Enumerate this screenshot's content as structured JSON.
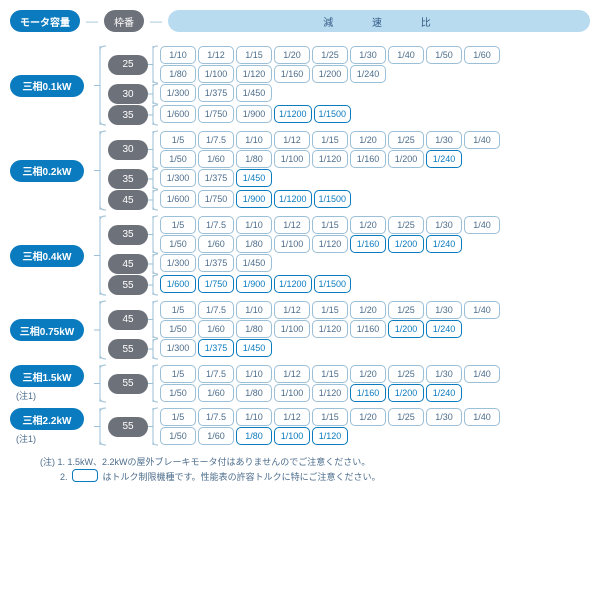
{
  "header": {
    "motor_capacity": "モータ容量",
    "frame_no": "枠番",
    "reduction_ratio": "減 速 比"
  },
  "groups": [
    {
      "motor": "三相0.1kW",
      "note": "",
      "frames": [
        {
          "no": "25",
          "rows": [
            [
              {
                "v": "1/10",
                "h": 0
              },
              {
                "v": "1/12",
                "h": 0
              },
              {
                "v": "1/15",
                "h": 0
              },
              {
                "v": "1/20",
                "h": 0
              },
              {
                "v": "1/25",
                "h": 0
              },
              {
                "v": "1/30",
                "h": 0
              },
              {
                "v": "1/40",
                "h": 0
              },
              {
                "v": "1/50",
                "h": 0
              },
              {
                "v": "1/60",
                "h": 0
              }
            ],
            [
              {
                "v": "1/80",
                "h": 0
              },
              {
                "v": "1/100",
                "h": 0
              },
              {
                "v": "1/120",
                "h": 0
              },
              {
                "v": "1/160",
                "h": 0
              },
              {
                "v": "1/200",
                "h": 0
              },
              {
                "v": "1/240",
                "h": 0
              }
            ]
          ]
        },
        {
          "no": "30",
          "rows": [
            [
              {
                "v": "1/300",
                "h": 0
              },
              {
                "v": "1/375",
                "h": 0
              },
              {
                "v": "1/450",
                "h": 0
              }
            ]
          ]
        },
        {
          "no": "35",
          "rows": [
            [
              {
                "v": "1/600",
                "h": 0
              },
              {
                "v": "1/750",
                "h": 0
              },
              {
                "v": "1/900",
                "h": 0
              },
              {
                "v": "1/1200",
                "h": 1
              },
              {
                "v": "1/1500",
                "h": 1
              }
            ]
          ]
        }
      ]
    },
    {
      "motor": "三相0.2kW",
      "note": "",
      "frames": [
        {
          "no": "30",
          "rows": [
            [
              {
                "v": "1/5",
                "h": 0
              },
              {
                "v": "1/7.5",
                "h": 0
              },
              {
                "v": "1/10",
                "h": 0
              },
              {
                "v": "1/12",
                "h": 0
              },
              {
                "v": "1/15",
                "h": 0
              },
              {
                "v": "1/20",
                "h": 0
              },
              {
                "v": "1/25",
                "h": 0
              },
              {
                "v": "1/30",
                "h": 0
              },
              {
                "v": "1/40",
                "h": 0
              }
            ],
            [
              {
                "v": "1/50",
                "h": 0
              },
              {
                "v": "1/60",
                "h": 0
              },
              {
                "v": "1/80",
                "h": 0
              },
              {
                "v": "1/100",
                "h": 0
              },
              {
                "v": "1/120",
                "h": 0
              },
              {
                "v": "1/160",
                "h": 0
              },
              {
                "v": "1/200",
                "h": 0
              },
              {
                "v": "1/240",
                "h": 1
              }
            ]
          ]
        },
        {
          "no": "35",
          "rows": [
            [
              {
                "v": "1/300",
                "h": 0
              },
              {
                "v": "1/375",
                "h": 0
              },
              {
                "v": "1/450",
                "h": 1
              }
            ]
          ]
        },
        {
          "no": "45",
          "rows": [
            [
              {
                "v": "1/600",
                "h": 0
              },
              {
                "v": "1/750",
                "h": 0
              },
              {
                "v": "1/900",
                "h": 1
              },
              {
                "v": "1/1200",
                "h": 1
              },
              {
                "v": "1/1500",
                "h": 1
              }
            ]
          ]
        }
      ]
    },
    {
      "motor": "三相0.4kW",
      "note": "",
      "frames": [
        {
          "no": "35",
          "rows": [
            [
              {
                "v": "1/5",
                "h": 0
              },
              {
                "v": "1/7.5",
                "h": 0
              },
              {
                "v": "1/10",
                "h": 0
              },
              {
                "v": "1/12",
                "h": 0
              },
              {
                "v": "1/15",
                "h": 0
              },
              {
                "v": "1/20",
                "h": 0
              },
              {
                "v": "1/25",
                "h": 0
              },
              {
                "v": "1/30",
                "h": 0
              },
              {
                "v": "1/40",
                "h": 0
              }
            ],
            [
              {
                "v": "1/50",
                "h": 0
              },
              {
                "v": "1/60",
                "h": 0
              },
              {
                "v": "1/80",
                "h": 0
              },
              {
                "v": "1/100",
                "h": 0
              },
              {
                "v": "1/120",
                "h": 0
              },
              {
                "v": "1/160",
                "h": 1
              },
              {
                "v": "1/200",
                "h": 1
              },
              {
                "v": "1/240",
                "h": 1
              }
            ]
          ]
        },
        {
          "no": "45",
          "rows": [
            [
              {
                "v": "1/300",
                "h": 0
              },
              {
                "v": "1/375",
                "h": 0
              },
              {
                "v": "1/450",
                "h": 0
              }
            ]
          ]
        },
        {
          "no": "55",
          "rows": [
            [
              {
                "v": "1/600",
                "h": 1
              },
              {
                "v": "1/750",
                "h": 1
              },
              {
                "v": "1/900",
                "h": 1
              },
              {
                "v": "1/1200",
                "h": 1
              },
              {
                "v": "1/1500",
                "h": 1
              }
            ]
          ]
        }
      ]
    },
    {
      "motor": "三相0.75kW",
      "note": "",
      "frames": [
        {
          "no": "45",
          "rows": [
            [
              {
                "v": "1/5",
                "h": 0
              },
              {
                "v": "1/7.5",
                "h": 0
              },
              {
                "v": "1/10",
                "h": 0
              },
              {
                "v": "1/12",
                "h": 0
              },
              {
                "v": "1/15",
                "h": 0
              },
              {
                "v": "1/20",
                "h": 0
              },
              {
                "v": "1/25",
                "h": 0
              },
              {
                "v": "1/30",
                "h": 0
              },
              {
                "v": "1/40",
                "h": 0
              }
            ],
            [
              {
                "v": "1/50",
                "h": 0
              },
              {
                "v": "1/60",
                "h": 0
              },
              {
                "v": "1/80",
                "h": 0
              },
              {
                "v": "1/100",
                "h": 0
              },
              {
                "v": "1/120",
                "h": 0
              },
              {
                "v": "1/160",
                "h": 0
              },
              {
                "v": "1/200",
                "h": 1
              },
              {
                "v": "1/240",
                "h": 1
              }
            ]
          ]
        },
        {
          "no": "55",
          "rows": [
            [
              {
                "v": "1/300",
                "h": 0
              },
              {
                "v": "1/375",
                "h": 1
              },
              {
                "v": "1/450",
                "h": 1
              }
            ]
          ]
        }
      ]
    },
    {
      "motor": "三相1.5kW",
      "note": "(注1)",
      "frames": [
        {
          "no": "55",
          "rows": [
            [
              {
                "v": "1/5",
                "h": 0
              },
              {
                "v": "1/7.5",
                "h": 0
              },
              {
                "v": "1/10",
                "h": 0
              },
              {
                "v": "1/12",
                "h": 0
              },
              {
                "v": "1/15",
                "h": 0
              },
              {
                "v": "1/20",
                "h": 0
              },
              {
                "v": "1/25",
                "h": 0
              },
              {
                "v": "1/30",
                "h": 0
              },
              {
                "v": "1/40",
                "h": 0
              }
            ],
            [
              {
                "v": "1/50",
                "h": 0
              },
              {
                "v": "1/60",
                "h": 0
              },
              {
                "v": "1/80",
                "h": 0
              },
              {
                "v": "1/100",
                "h": 0
              },
              {
                "v": "1/120",
                "h": 0
              },
              {
                "v": "1/160",
                "h": 1
              },
              {
                "v": "1/200",
                "h": 1
              },
              {
                "v": "1/240",
                "h": 1
              }
            ]
          ]
        }
      ]
    },
    {
      "motor": "三相2.2kW",
      "note": "(注1)",
      "frames": [
        {
          "no": "55",
          "rows": [
            [
              {
                "v": "1/5",
                "h": 0
              },
              {
                "v": "1/7.5",
                "h": 0
              },
              {
                "v": "1/10",
                "h": 0
              },
              {
                "v": "1/12",
                "h": 0
              },
              {
                "v": "1/15",
                "h": 0
              },
              {
                "v": "1/20",
                "h": 0
              },
              {
                "v": "1/25",
                "h": 0
              },
              {
                "v": "1/30",
                "h": 0
              },
              {
                "v": "1/40",
                "h": 0
              }
            ],
            [
              {
                "v": "1/50",
                "h": 0
              },
              {
                "v": "1/60",
                "h": 0
              },
              {
                "v": "1/80",
                "h": 1
              },
              {
                "v": "1/100",
                "h": 1
              },
              {
                "v": "1/120",
                "h": 1
              }
            ]
          ]
        }
      ]
    }
  ],
  "footer": {
    "line1_label": "(注)",
    "line1": "1. 1.5kW、2.2kWの屋外ブレーキモータ付はありませんのでご注意ください。",
    "line2_prefix": "2.",
    "line2_suffix": "はトルク制限機種です。性能表の許容トルクに特にご注意ください。"
  },
  "colors": {
    "blue": "#0b7bbf",
    "light_blue": "#b8dbf0",
    "gray": "#6d7179",
    "border_normal": "#9bbfd6",
    "text": "#4d6d8c"
  }
}
